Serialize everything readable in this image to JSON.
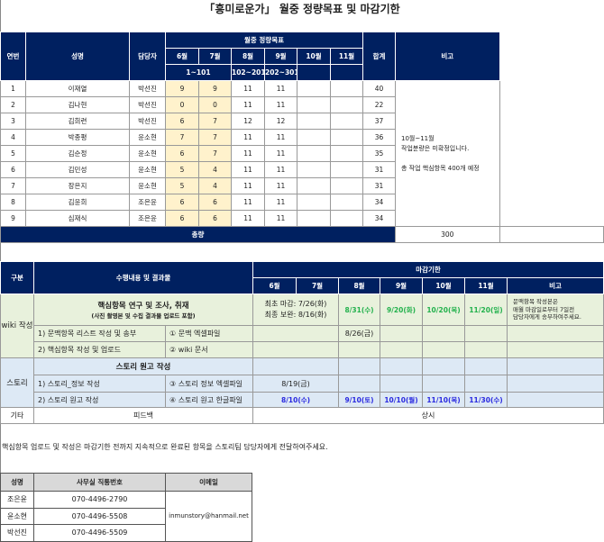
{
  "title": "「흥미로운가」 월중 정량목표 및 마감기한",
  "quota": {
    "headers": {
      "no": "연번",
      "name": "성명",
      "manager": "담당자",
      "monthly_target": "월중 정량목표",
      "total": "합계",
      "remarks": "비고"
    },
    "months": [
      "6월",
      "7월",
      "8월",
      "9월",
      "10월",
      "11월"
    ],
    "ranges": [
      "1~101",
      "102~201",
      "202~301"
    ],
    "rows": [
      {
        "no": "1",
        "name": "이재열",
        "manager": "박선진",
        "m6": "9",
        "m7": "9",
        "m8": "11",
        "m9": "11",
        "total": "40"
      },
      {
        "no": "2",
        "name": "김나현",
        "manager": "박선진",
        "m6": "0",
        "m7": "0",
        "m8": "11",
        "m9": "11",
        "total": "22"
      },
      {
        "no": "3",
        "name": "김희련",
        "manager": "박선진",
        "m6": "6",
        "m7": "7",
        "m8": "12",
        "m9": "12",
        "total": "37"
      },
      {
        "no": "4",
        "name": "박종평",
        "manager": "윤소현",
        "m6": "7",
        "m7": "7",
        "m8": "11",
        "m9": "11",
        "total": "36"
      },
      {
        "no": "5",
        "name": "김순정",
        "manager": "윤소현",
        "m6": "6",
        "m7": "7",
        "m8": "11",
        "m9": "11",
        "total": "35"
      },
      {
        "no": "6",
        "name": "김민성",
        "manager": "윤소현",
        "m6": "5",
        "m7": "4",
        "m8": "11",
        "m9": "11",
        "total": "31"
      },
      {
        "no": "7",
        "name": "장은지",
        "manager": "윤소현",
        "m6": "5",
        "m7": "4",
        "m8": "11",
        "m9": "11",
        "total": "31"
      },
      {
        "no": "8",
        "name": "김윤희",
        "manager": "조은윤",
        "m6": "6",
        "m7": "6",
        "m8": "11",
        "m9": "11",
        "total": "34"
      },
      {
        "no": "9",
        "name": "심재식",
        "manager": "조은윤",
        "m6": "6",
        "m7": "6",
        "m8": "11",
        "m9": "11",
        "total": "34"
      }
    ],
    "remark_line1": "10월~11월",
    "remark_line2": "작업분량은 미확정입니다.",
    "remark_line3": "총 작업 핵심항목 400개 예정",
    "total_label": "총량",
    "total_value": "300"
  },
  "deadlines": {
    "headers": {
      "category": "구분",
      "task": "수행내용 및 결과물",
      "deadline": "마감기한",
      "remarks": "비고"
    },
    "months": [
      "6월",
      "7월",
      "8월",
      "9월",
      "10월",
      "11월"
    ],
    "wiki": {
      "category": "wiki 작성",
      "main_task": "핵심항목 연구 및 조사, 취재",
      "main_sub": "(사진 촬영본 및 수집 결과물 업로드 포함)",
      "first_deadline": "최초 마감: 7/26(화)",
      "final_revision": "최종 보완: 8/16(화)",
      "dates": [
        "8/31(수)",
        "9/20(화)",
        "10/20(목)",
        "11/20(일)"
      ],
      "remark": [
        "문맥항목 작성본은",
        "매월 마감일로부터 7일전",
        "담당자에게 송부하여주세요."
      ],
      "task1": "1) 문맥항목 리스트 작성 및 송부",
      "output1": "① 문맥 엑셀파일",
      "task1_date": "8/26(금)",
      "task2": "2) 핵심항목 작성 및 업로드",
      "output2": "② wiki 문서"
    },
    "story": {
      "category": "스토리",
      "main_task": "스토리 원고 작성",
      "task1": "1) 스토리_정보 작성",
      "output1": "③ 스토리 정보 엑셀파일",
      "task1_date": "8/19(금)",
      "task2": "2) 스토리 원고 작성",
      "output2": "④ 스토리 원고 한글파일",
      "dates": [
        "8/10(수)",
        "9/10(토)",
        "10/10(월)",
        "11/10(목)",
        "11/30(수)"
      ]
    },
    "etc": {
      "category": "기타",
      "task": "피드백",
      "deadline": "상시"
    }
  },
  "message": "핵심항목 업로드 및 작성은 마감기한 전까지 지속적으로 완료된 항목을 스토리팀 담당자에게 전달하여주세요.",
  "contacts": {
    "headers": {
      "name": "성명",
      "phone": "사무실 직통번호",
      "email": "이메일"
    },
    "rows": [
      {
        "name": "조은윤",
        "phone": "070-4496-2790"
      },
      {
        "name": "윤소현",
        "phone": "070-4496-5508"
      },
      {
        "name": "박선진",
        "phone": "070-4496-5509"
      }
    ],
    "email": "inmunstory@hanmail.net"
  },
  "colors": {
    "header_navy": "#002060",
    "target_highlight": "#fff2cc",
    "wiki_bg": "#e8f1dc",
    "story_bg": "#dde9f5",
    "green_text": "#22b14c",
    "blue_text": "#2a2ae0"
  }
}
